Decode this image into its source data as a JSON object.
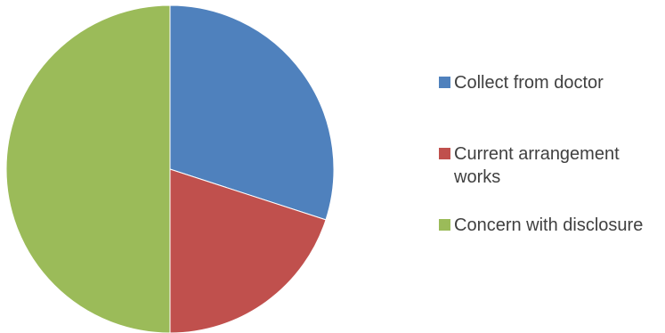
{
  "chart_data": {
    "type": "pie",
    "title": "",
    "categories": [
      "Collect from doctor",
      "Current arrangement works",
      "Concern with disclosure"
    ],
    "values": [
      30,
      20,
      50
    ],
    "colors": [
      "#4f81bd",
      "#c0504d",
      "#9bbb59"
    ],
    "legend_position": "right",
    "start_angle": "top",
    "direction": "clockwise"
  },
  "legend": {
    "items": [
      {
        "label": "Collect from doctor",
        "color": "#4f81bd"
      },
      {
        "label": "Current arrangement works",
        "color": "#c0504d"
      },
      {
        "label": "Concern with disclosure",
        "color": "#9bbb59"
      }
    ]
  }
}
